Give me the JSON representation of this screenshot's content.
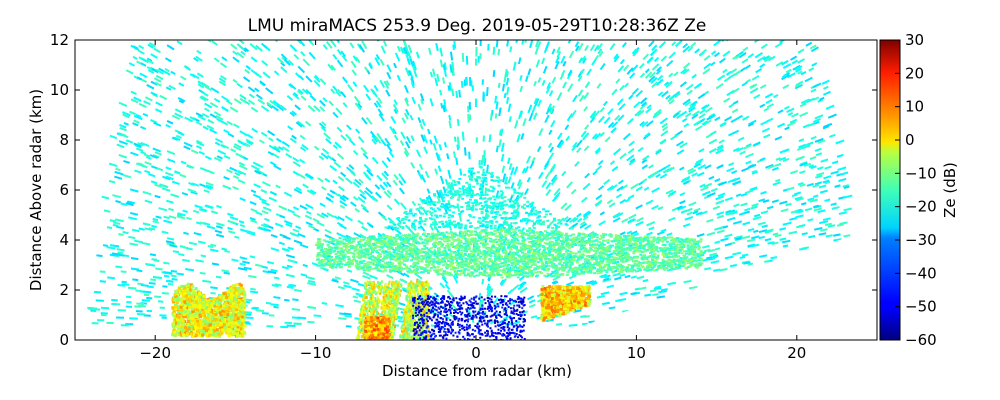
{
  "chart_data": {
    "type": "heatmap",
    "title": "LMU miraMACS 253.9 Deg. 2019-05-29T10:28:36Z  Ze",
    "xlabel": "Distance from radar (km)",
    "ylabel": "Distance Above radar  (km)",
    "xlim": [
      -25,
      25
    ],
    "ylim": [
      0,
      12
    ],
    "xticks": [
      -20,
      -10,
      0,
      10,
      20
    ],
    "xtick_labels": [
      "−20",
      "−10",
      "0",
      "10",
      "20"
    ],
    "yticks": [
      0,
      2,
      4,
      6,
      8,
      10,
      12
    ],
    "ytick_labels": [
      "0",
      "2",
      "4",
      "6",
      "8",
      "10",
      "12"
    ],
    "colorbar": {
      "label": "Ze (dB)",
      "range": [
        -60,
        30
      ],
      "ticks": [
        30,
        20,
        10,
        0,
        -10,
        -20,
        -30,
        -40,
        -50,
        -60
      ],
      "tick_labels": [
        "30",
        "20",
        "10",
        "0",
        "−10",
        "−20",
        "−30",
        "−40",
        "−50",
        "−60"
      ],
      "colormap": "jet"
    },
    "scan_sector": {
      "left_edge": [
        [
          -24,
          0.5
        ],
        [
          -22.5,
          8
        ],
        [
          -21,
          12
        ]
      ],
      "right_edge": [
        [
          4,
          0
        ],
        [
          23.5,
          4.2
        ],
        [
          22.5,
          8
        ],
        [
          21,
          12
        ]
      ]
    },
    "regions": [
      {
        "name": "noise-field",
        "ze_dB": -25,
        "x": [
          -24,
          23
        ],
        "y": [
          0.5,
          12
        ]
      },
      {
        "name": "stratiform-layer",
        "ze_dB": -18,
        "x": [
          -10,
          14
        ],
        "y": [
          2.5,
          4.5
        ]
      },
      {
        "name": "upper-cloud",
        "ze_dB": -24,
        "x": [
          -6,
          6
        ],
        "y": [
          4.5,
          7
        ]
      },
      {
        "name": "low-cell-left",
        "ze_dB": -5,
        "x": [
          -19,
          -14.5
        ],
        "y": [
          0.2,
          2.3
        ]
      },
      {
        "name": "precip-shafts",
        "ze_dB": -8,
        "x": [
          -8,
          -3
        ],
        "y": [
          0,
          2.4
        ]
      },
      {
        "name": "strong-core",
        "ze_dB": 5,
        "x": [
          -7,
          -5.5
        ],
        "y": [
          0,
          1
        ]
      },
      {
        "name": "near-radar-clear",
        "ze_dB": -50,
        "x": [
          -4,
          3
        ],
        "y": [
          0,
          2
        ]
      },
      {
        "name": "right-cell",
        "ze_dB": 0,
        "x": [
          4,
          7
        ],
        "y": [
          0.8,
          2.2
        ]
      }
    ]
  }
}
